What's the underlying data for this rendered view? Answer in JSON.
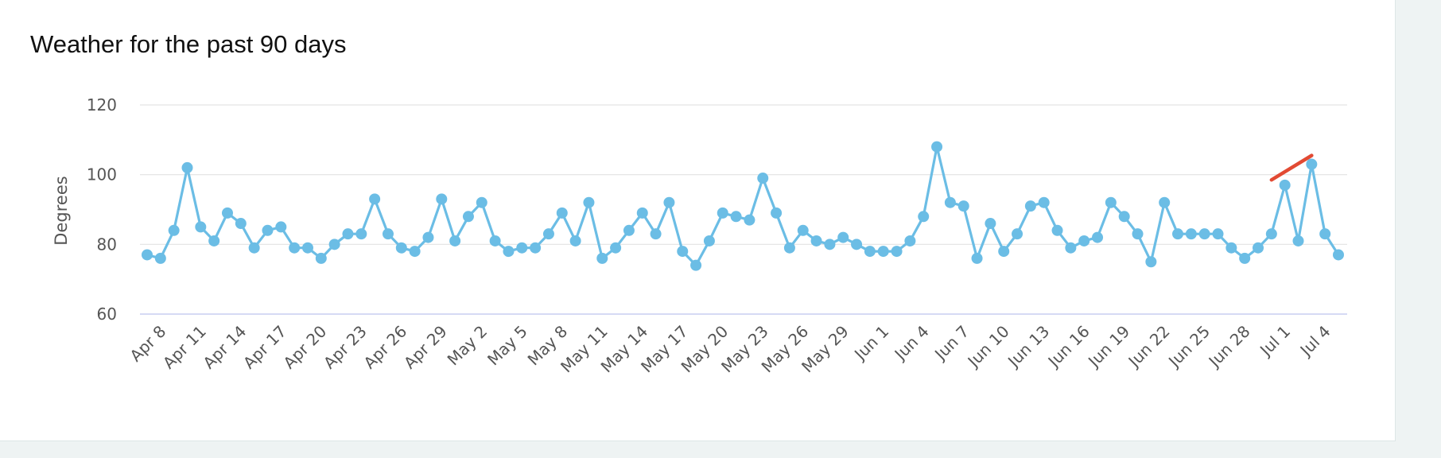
{
  "card": {
    "title": "Weather for the past 90 days"
  },
  "colors": {
    "series": "#6bbde5",
    "trend": "#e24a33",
    "grid": "#e3e3e3",
    "baseline": "#c9cdf0",
    "text": "#555555"
  },
  "chart_data": {
    "type": "line",
    "title": "Weather for the past 90 days",
    "xlabel": "",
    "ylabel": "Degrees",
    "ylim": [
      60,
      120
    ],
    "yticks": [
      60,
      80,
      100,
      120
    ],
    "grid": true,
    "legend": "none",
    "x": [
      "Apr 7",
      "Apr 8",
      "Apr 9",
      "Apr 10",
      "Apr 11",
      "Apr 12",
      "Apr 13",
      "Apr 14",
      "Apr 15",
      "Apr 16",
      "Apr 17",
      "Apr 18",
      "Apr 19",
      "Apr 20",
      "Apr 21",
      "Apr 22",
      "Apr 23",
      "Apr 24",
      "Apr 25",
      "Apr 26",
      "Apr 27",
      "Apr 28",
      "Apr 29",
      "Apr 30",
      "May 1",
      "May 2",
      "May 3",
      "May 4",
      "May 5",
      "May 6",
      "May 7",
      "May 8",
      "May 9",
      "May 10",
      "May 11",
      "May 12",
      "May 13",
      "May 14",
      "May 15",
      "May 16",
      "May 17",
      "May 18",
      "May 19",
      "May 20",
      "May 21",
      "May 22",
      "May 23",
      "May 24",
      "May 25",
      "May 26",
      "May 27",
      "May 28",
      "May 29",
      "May 30",
      "May 31",
      "Jun 1",
      "Jun 2",
      "Jun 3",
      "Jun 4",
      "Jun 5",
      "Jun 6",
      "Jun 7",
      "Jun 8",
      "Jun 9",
      "Jun 10",
      "Jun 11",
      "Jun 12",
      "Jun 13",
      "Jun 14",
      "Jun 15",
      "Jun 16",
      "Jun 17",
      "Jun 18",
      "Jun 19",
      "Jun 20",
      "Jun 21",
      "Jun 22",
      "Jun 23",
      "Jun 24",
      "Jun 25",
      "Jun 26",
      "Jun 27",
      "Jun 28",
      "Jun 29",
      "Jun 30",
      "Jul 1",
      "Jul 2",
      "Jul 3",
      "Jul 4",
      "Jul 5"
    ],
    "xtick_labels": [
      "Apr 8",
      "Apr 11",
      "Apr 14",
      "Apr 17",
      "Apr 20",
      "Apr 23",
      "Apr 26",
      "Apr 29",
      "May 2",
      "May 5",
      "May 8",
      "May 11",
      "May 14",
      "May 17",
      "May 20",
      "May 23",
      "May 26",
      "May 29",
      "Jun 1",
      "Jun 4",
      "Jun 7",
      "Jun 10",
      "Jun 13",
      "Jun 16",
      "Jun 19",
      "Jun 22",
      "Jun 25",
      "Jun 28",
      "Jul 1",
      "Jul 4"
    ],
    "series": [
      {
        "values": [
          77,
          76,
          84,
          102,
          85,
          81,
          89,
          86,
          79,
          84,
          85,
          79,
          79,
          76,
          80,
          83,
          83,
          93,
          83,
          79,
          78,
          82,
          93,
          81,
          88,
          92,
          81,
          78,
          79,
          79,
          83,
          89,
          81,
          92,
          76,
          79,
          84,
          89,
          83,
          92,
          78,
          74,
          81,
          89,
          88,
          87,
          99,
          89,
          79,
          84,
          81,
          80,
          82,
          80,
          78,
          78,
          78,
          81,
          88,
          108,
          92,
          91,
          76,
          86,
          78,
          83,
          91,
          92,
          84,
          79,
          81,
          82,
          92,
          88,
          83,
          75,
          92,
          83,
          83,
          83,
          83,
          79,
          76,
          79,
          83,
          97,
          81,
          103,
          83,
          77
        ]
      }
    ],
    "trend_line": {
      "x": [
        "Jun 30",
        "Jul 3"
      ],
      "y": [
        98.5,
        105.5
      ]
    }
  }
}
